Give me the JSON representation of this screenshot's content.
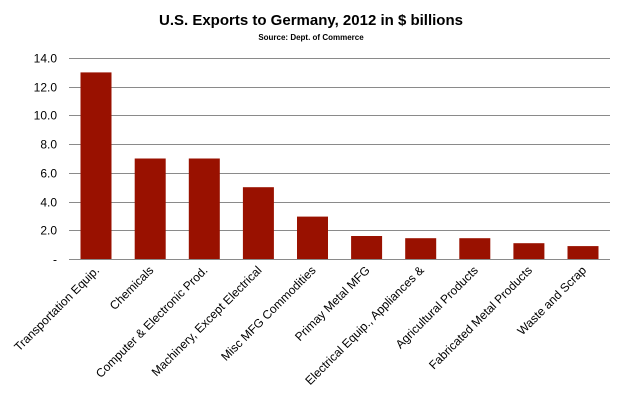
{
  "chart_data": {
    "type": "bar",
    "title": "U.S. Exports to Germany, 2012 in $ billions",
    "subtitle": "Source: Dept. of Commerce",
    "categories": [
      "Transportation Equip.",
      "Chemicals",
      "Computer & Electronic Prod.",
      "Machinery, Except Electrical",
      "Misc MFG Commodities",
      "Primay Metal MFG",
      "Electrical Equip., Appliances &",
      "Agricultural Products",
      "Fabricated Metal Products",
      "Waste and Scrap"
    ],
    "values": [
      13.0,
      7.0,
      7.0,
      5.0,
      2.95,
      1.6,
      1.45,
      1.45,
      1.1,
      0.9
    ],
    "ylim": [
      0,
      14
    ],
    "yticks": [
      "-",
      "2.0",
      "4.0",
      "6.0",
      "8.0",
      "10.0",
      "12.0",
      "14.0"
    ],
    "bar_color": "#991100",
    "grid": true,
    "legend": "none"
  }
}
